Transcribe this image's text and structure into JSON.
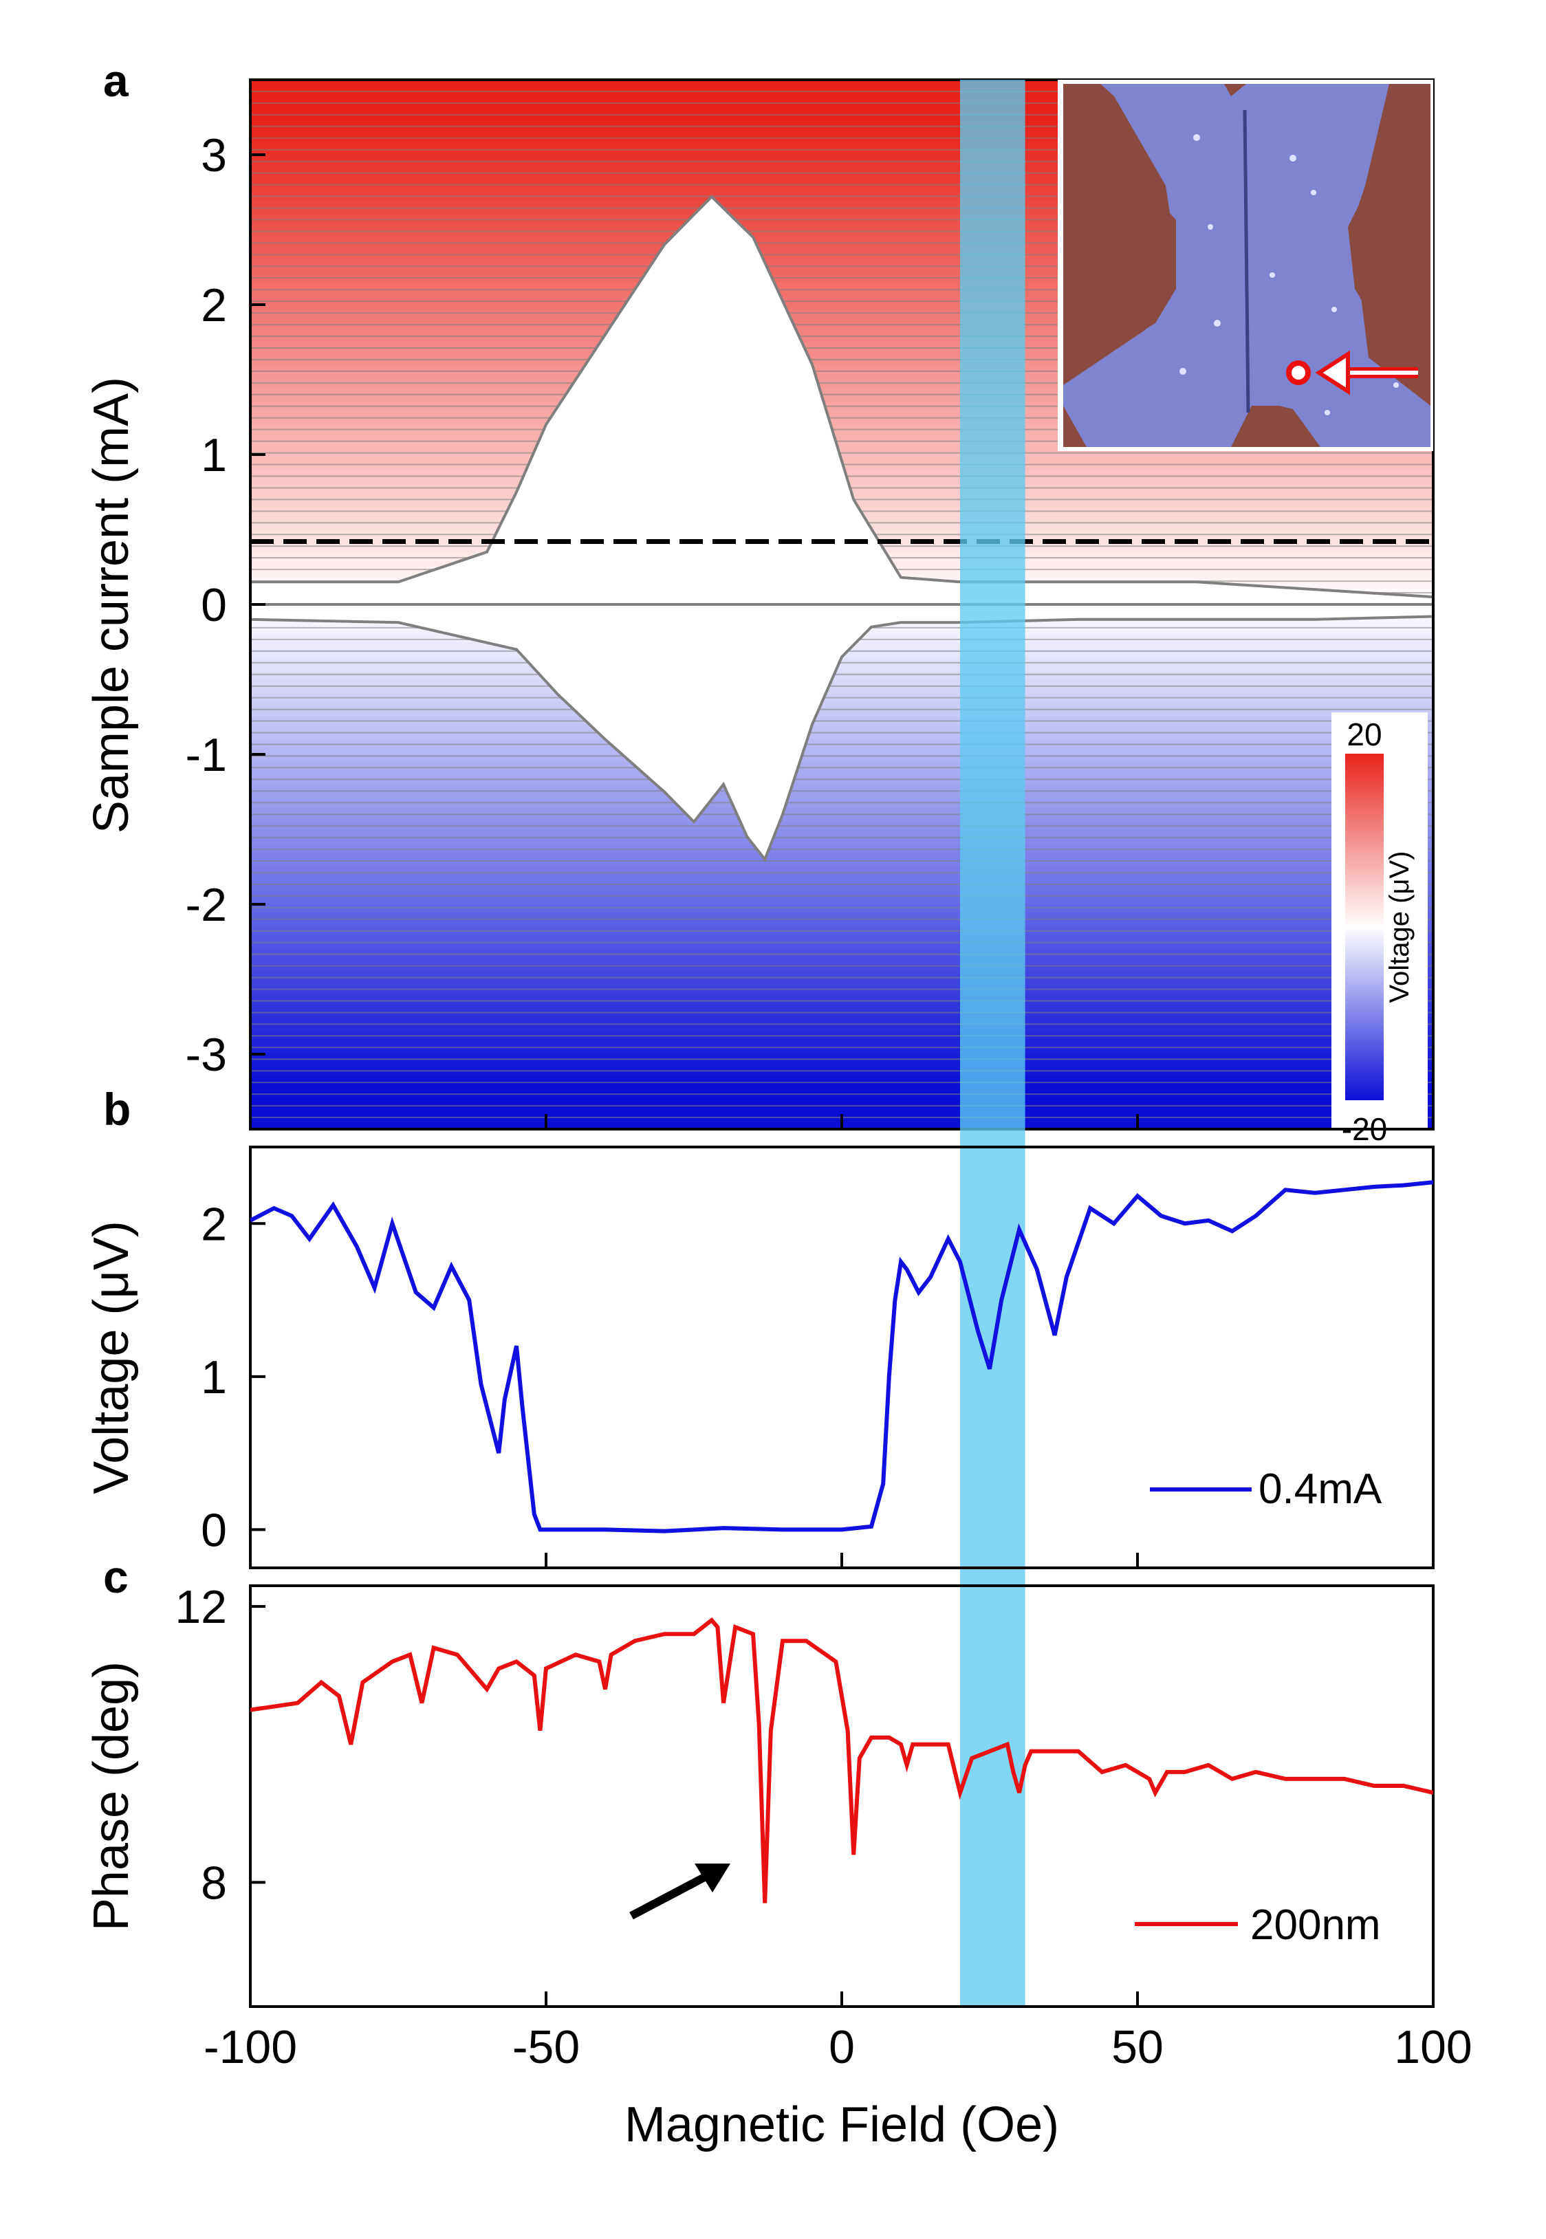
{
  "panel_labels": {
    "a": "a",
    "b": "b",
    "c": "c"
  },
  "colors": {
    "positive": "#e8231c",
    "negative": "#0a0fd6",
    "trace": "#7f7f7f",
    "highlight": "#5ccaf0",
    "voltage_line": "#1010e0",
    "phase_line": "#e81010",
    "phase_line_highlight": "#7a5a8a",
    "inset_blue": "#7f84d0",
    "inset_brown": "#8a4a40"
  },
  "highlight_band": {
    "x_range": [
      20,
      31
    ]
  },
  "x_axis": {
    "label": "Magnetic Field (Oe)",
    "range": [
      -100,
      100
    ],
    "ticks": [
      "-100",
      "-50",
      "0",
      "50",
      "100"
    ]
  },
  "chart_data": [
    {
      "id": "a",
      "type": "heatmap",
      "title": "",
      "xlabel": "",
      "ylabel": "Sample current (mA)",
      "xlim": [
        -100,
        100
      ],
      "ylim": [
        -3.5,
        3.5
      ],
      "yticks": [
        "3",
        "2",
        "1",
        "0",
        "-1",
        "-2",
        "-3"
      ],
      "dashed_line_current": 0.42,
      "colorbar": {
        "label": "Voltage (μV)",
        "max_label": "20",
        "min_label": "-20",
        "range": [
          -20,
          20
        ]
      },
      "superconducting_region_upper": {
        "x": [
          -100,
          -75,
          -60,
          -55,
          -50,
          -40,
          -30,
          -22,
          -15,
          -5,
          2,
          10,
          20,
          40,
          60,
          80,
          100
        ],
        "y": [
          0.15,
          0.15,
          0.35,
          0.75,
          1.2,
          1.8,
          2.4,
          2.72,
          2.45,
          1.6,
          0.7,
          0.18,
          0.15,
          0.15,
          0.15,
          0.1,
          0.05
        ]
      },
      "superconducting_region_lower": {
        "x": [
          -100,
          -75,
          -55,
          -48,
          -40,
          -30,
          -25,
          -20,
          -16,
          -13,
          -10,
          -5,
          0,
          5,
          10,
          20,
          40,
          60,
          80,
          100
        ],
        "y": [
          -0.1,
          -0.12,
          -0.3,
          -0.6,
          -0.9,
          -1.25,
          -1.45,
          -1.2,
          -1.55,
          -1.7,
          -1.4,
          -0.8,
          -0.35,
          -0.15,
          -0.12,
          -0.12,
          -0.1,
          -0.1,
          -0.1,
          -0.08
        ]
      },
      "inset": {
        "description": "device micrograph"
      }
    },
    {
      "id": "b",
      "type": "line",
      "ylabel": "Voltage (μV)",
      "xlim": [
        -100,
        100
      ],
      "ylim": [
        -0.25,
        2.5
      ],
      "yticks": [
        "0",
        "1",
        "2"
      ],
      "legend": "0.4mA",
      "series": [
        {
          "name": "0.4mA",
          "x": [
            -100,
            -96,
            -93,
            -90,
            -86,
            -82,
            -79,
            -76,
            -72,
            -69,
            -66,
            -63,
            -61,
            -58,
            -57,
            -55,
            -54,
            -52,
            -51,
            -48,
            -40,
            -30,
            -20,
            -10,
            0,
            5,
            7,
            8,
            9,
            10,
            11,
            13,
            15,
            18,
            20,
            23,
            25,
            27,
            30,
            33,
            36,
            38,
            42,
            46,
            50,
            54,
            58,
            62,
            66,
            70,
            75,
            80,
            85,
            90,
            95,
            100
          ],
          "y": [
            2.02,
            2.1,
            2.05,
            1.9,
            2.12,
            1.85,
            1.58,
            2.0,
            1.55,
            1.45,
            1.72,
            1.5,
            0.95,
            0.5,
            0.85,
            1.2,
            0.8,
            0.1,
            0.0,
            0.0,
            0.0,
            -0.01,
            0.01,
            0.0,
            0.0,
            0.02,
            0.3,
            1.0,
            1.5,
            1.75,
            1.7,
            1.55,
            1.65,
            1.9,
            1.75,
            1.3,
            1.05,
            1.5,
            1.96,
            1.7,
            1.27,
            1.65,
            2.1,
            2.0,
            2.18,
            2.05,
            2.0,
            2.02,
            1.95,
            2.05,
            2.22,
            2.2,
            2.22,
            2.24,
            2.25,
            2.27
          ]
        }
      ]
    },
    {
      "id": "c",
      "type": "line",
      "ylabel": "Phase (deg)",
      "xlim": [
        -100,
        100
      ],
      "ylim": [
        6.2,
        12.3
      ],
      "yticks": [
        "8",
        "12"
      ],
      "legend": "200nm",
      "series": [
        {
          "name": "200nm",
          "x": [
            -100,
            -92,
            -88,
            -85,
            -83,
            -81,
            -76,
            -73,
            -71,
            -69,
            -65,
            -62,
            -60,
            -58,
            -55,
            -52,
            -51,
            -50,
            -45,
            -41,
            -40,
            -39,
            -35,
            -30,
            -25,
            -22,
            -21,
            -20,
            -18,
            -15,
            -14,
            -13,
            -12,
            -10,
            -6,
            -1,
            1,
            2,
            3,
            5,
            8,
            10,
            11,
            12,
            14,
            18,
            20,
            22,
            25,
            28,
            29,
            30,
            31,
            32,
            36,
            40,
            44,
            48,
            52,
            53,
            55,
            58,
            62,
            66,
            70,
            75,
            80,
            85,
            90,
            95,
            100
          ],
          "y": [
            10.5,
            10.6,
            10.9,
            10.7,
            10.0,
            10.9,
            11.2,
            11.3,
            10.6,
            11.4,
            11.3,
            11.0,
            10.8,
            11.1,
            11.2,
            11.0,
            10.2,
            11.1,
            11.3,
            11.2,
            10.8,
            11.3,
            11.5,
            11.6,
            11.6,
            11.8,
            11.7,
            10.6,
            11.7,
            11.6,
            10.3,
            7.7,
            10.2,
            11.5,
            11.5,
            11.2,
            10.2,
            8.4,
            9.8,
            10.1,
            10.1,
            10.0,
            9.7,
            10.0,
            10.0,
            10.0,
            9.3,
            9.8,
            9.9,
            10.0,
            9.6,
            9.3,
            9.7,
            9.9,
            9.9,
            9.9,
            9.6,
            9.7,
            9.5,
            9.3,
            9.6,
            9.6,
            9.7,
            9.5,
            9.6,
            9.5,
            9.5,
            9.5,
            9.4,
            9.4,
            9.3
          ]
        }
      ]
    }
  ]
}
